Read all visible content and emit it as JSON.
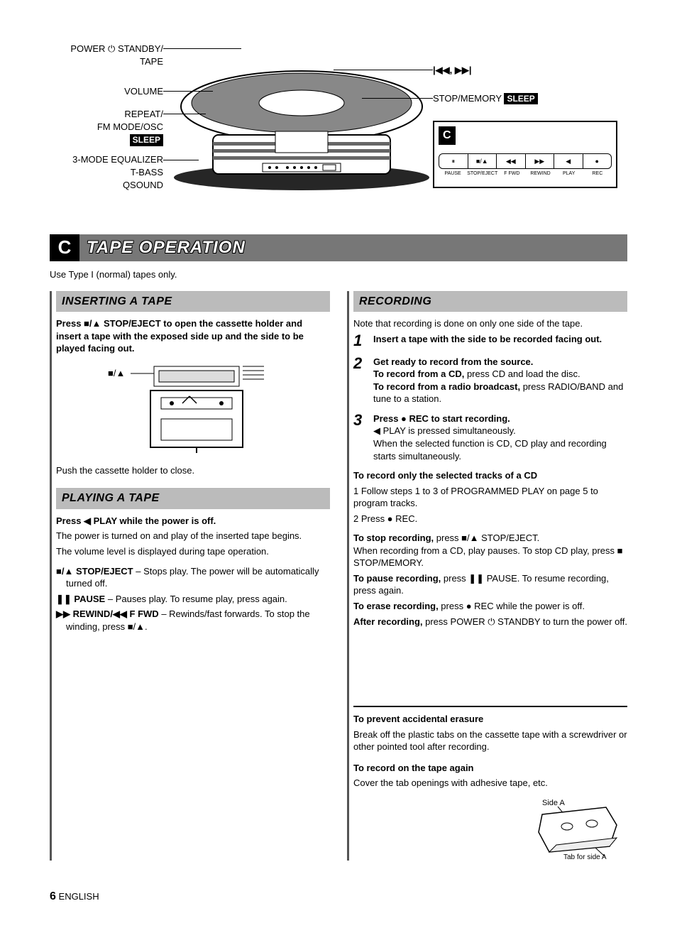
{
  "diagram": {
    "labels_left": {
      "power": "POWER ⏻ STANDBY/\nTAPE",
      "volume": "VOLUME",
      "repeat": "REPEAT/\nFM MODE/OSC",
      "sleep_badge": "SLEEP",
      "eq": "3-MODE EQUALIZER\nT-BASS\nQSOUND"
    },
    "labels_right": {
      "skip": "|◀◀, ▶▶|",
      "stop_memory": "STOP/MEMORY",
      "sleep_badge": "SLEEP"
    },
    "panel": {
      "badge": "C",
      "buttons": [
        "⏸",
        "■/▲",
        "◀◀",
        "▶▶",
        "◀",
        "●"
      ],
      "button_labels": [
        "PAUSE",
        "STOP/EJECT",
        "F FWD",
        "REWIND",
        "PLAY",
        "REC"
      ]
    }
  },
  "section": {
    "badge": "C",
    "title": "TAPE OPERATION",
    "intro": "Use Type I (normal) tapes only."
  },
  "inserting": {
    "header": "INSERTING A TAPE",
    "lead": "Press ■/▲ STOP/EJECT to open the cassette holder and insert a tape with the exposed side up and the side to be played facing out.",
    "close_note": "Push the cassette holder to close.",
    "diagram_label": "■/▲"
  },
  "playing": {
    "header": "PLAYING A TAPE",
    "lead": "Press ◀ PLAY while the power is off.",
    "body1": "The power is turned on and play of the inserted tape begins.",
    "body2": "The volume level is displayed during tape operation.",
    "controls": {
      "stop": "■/▲ STOP/EJECT – Stops play. The power will be automatically turned off.",
      "pause": "❚❚ PAUSE – Pauses play. To resume play, press again.",
      "rewind": "▶▶ REWIND/◀◀ F FWD – Rewinds/fast forwards. To stop the winding, press ■/▲."
    }
  },
  "recording": {
    "header": "RECORDING",
    "note": "Note that recording is done on only one side of the tape.",
    "steps": [
      {
        "num": "1",
        "lead": "Insert a tape with the side to be recorded facing out.",
        "body": ""
      },
      {
        "num": "2",
        "lead": "Get ready to record from the source.",
        "body_lines": [
          {
            "bold": "To record from a CD,",
            "rest": " press CD and load the disc."
          },
          {
            "bold": "To record from a radio broadcast,",
            "rest": " press RADIO/BAND and tune to a station."
          }
        ]
      },
      {
        "num": "3",
        "lead": "Press ● REC to start recording.",
        "body_plain": [
          "◀ PLAY is pressed simultaneously.",
          "When the selected function is CD, CD play and recording starts simultaneously."
        ]
      }
    ],
    "selected_tracks": {
      "head": "To record only the selected tracks of a CD",
      "items": [
        "1   Follow steps 1 to 3 of PROGRAMMED PLAY on page 5 to program tracks.",
        "2   Press ● REC."
      ]
    },
    "stop_rec": {
      "bold": "To stop recording,",
      "rest": " press ■/▲ STOP/EJECT.\nWhen recording from a CD, play pauses. To stop CD play, press ■ STOP/MEMORY."
    },
    "pause_rec": {
      "bold": "To pause recording,",
      "rest": " press ❚❚ PAUSE. To resume recording, press again."
    },
    "erase_rec": {
      "bold": "To erase recording,",
      "rest": " press ● REC while the power is off."
    },
    "after_rec": {
      "bold": "After recording,",
      "rest": " press POWER ⏻ STANDBY to turn the power off."
    }
  },
  "prevent_erase": {
    "head": "To prevent accidental erasure",
    "body": "Break off the plastic tabs on the cassette tape with a screwdriver or other pointed tool after recording."
  },
  "record_again": {
    "head": "To record on the tape again",
    "body": "Cover the tab openings with adhesive tape, etc."
  },
  "cassette_labels": {
    "side_a": "Side A",
    "tab": "Tab for side A"
  },
  "footer": {
    "page": "6",
    "lang": "ENGLISH"
  },
  "colors": {
    "text": "#000000",
    "bg": "#ffffff",
    "header_dark": "#666666",
    "header_light": "#bbbbbb",
    "badge_bg": "#000000",
    "badge_fg": "#ffffff"
  }
}
